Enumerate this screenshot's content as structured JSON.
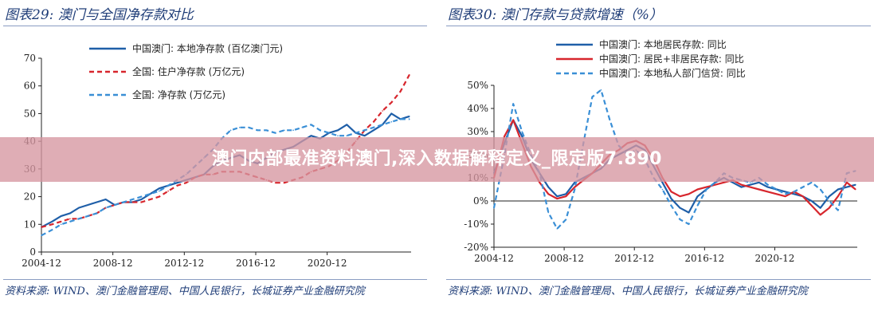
{
  "left": {
    "title": "图表29:  澳门与全国净存款对比",
    "source": "资料来源:  WIND、澳门金融管理局、中国人民银行，长城证券产业金融研究院"
  },
  "right": {
    "title": "图表30:  澳门存款与贷款增速（%）",
    "source": "资料来源:  WIND、澳门金融管理局、中国人民银行，长城证券产业金融研究院"
  },
  "banner": {
    "text": "澳门内部最准资料澳门,深入数据解释定义_限定版7.890"
  },
  "chart_data": [
    {
      "type": "line",
      "ylim": [
        0,
        70
      ],
      "yticks": [
        "0",
        "10",
        "20",
        "30",
        "40",
        "50",
        "60",
        "70"
      ],
      "xticks": [
        "2004-12",
        "2008-12",
        "2012-12",
        "2016-12",
        "2020-12"
      ],
      "xlim": [
        2004.9,
        2025.6
      ],
      "grid": false,
      "legend_position": "top",
      "series": [
        {
          "name": "中国澳门: 本地净存款 (百亿澳门元)",
          "color": "#1f5fa8",
          "style": "solid",
          "x": [
            2004.9,
            2005.5,
            2006.0,
            2006.5,
            2007.0,
            2007.5,
            2008.0,
            2008.5,
            2009.0,
            2009.5,
            2010.0,
            2010.5,
            2011.0,
            2011.5,
            2012.0,
            2012.5,
            2013.0,
            2013.5,
            2014.0,
            2014.5,
            2015.0,
            2015.5,
            2016.0,
            2016.5,
            2017.0,
            2017.5,
            2018.0,
            2018.5,
            2019.0,
            2019.5,
            2020.0,
            2020.5,
            2021.0,
            2021.5,
            2022.0,
            2022.5,
            2023.0,
            2023.5,
            2024.0,
            2024.5,
            2025.0,
            2025.5
          ],
          "values": [
            9,
            11,
            13,
            14,
            16,
            17,
            18,
            19,
            17,
            18,
            18,
            19,
            21,
            23,
            24,
            25,
            26,
            27,
            28,
            31,
            33,
            34,
            35,
            33,
            32,
            34,
            36,
            37,
            38,
            40,
            42,
            41,
            43,
            44,
            46,
            43,
            42,
            44,
            46,
            50,
            48,
            49
          ]
        },
        {
          "name": "全国: 住户净存款 (万亿元)",
          "color": "#d7262d",
          "style": "dashed",
          "x": [
            2004.9,
            2005.5,
            2006.0,
            2006.5,
            2007.0,
            2007.5,
            2008.0,
            2008.5,
            2009.0,
            2009.5,
            2010.0,
            2010.5,
            2011.0,
            2011.5,
            2012.0,
            2012.5,
            2013.0,
            2013.5,
            2014.0,
            2014.5,
            2015.0,
            2015.5,
            2016.0,
            2016.5,
            2017.0,
            2017.5,
            2018.0,
            2018.5,
            2019.0,
            2019.5,
            2020.0,
            2020.5,
            2021.0,
            2021.5,
            2022.0,
            2022.5,
            2023.0,
            2023.5,
            2024.0,
            2024.5,
            2025.0,
            2025.5
          ],
          "values": [
            9,
            10,
            11,
            12,
            12,
            13,
            14,
            16,
            17,
            18,
            18,
            18,
            19,
            20,
            22,
            24,
            25,
            27,
            28,
            28,
            29,
            29,
            29,
            28,
            27,
            26,
            25,
            25,
            26,
            27,
            29,
            30,
            31,
            33,
            36,
            40,
            44,
            47,
            51,
            54,
            58,
            64
          ]
        },
        {
          "name": "全国: 净存款 (万亿元)",
          "color": "#3a8fd6",
          "style": "dashed",
          "x": [
            2004.9,
            2005.5,
            2006.0,
            2006.5,
            2007.0,
            2007.5,
            2008.0,
            2008.5,
            2009.0,
            2009.5,
            2010.0,
            2010.5,
            2011.0,
            2011.5,
            2012.0,
            2012.5,
            2013.0,
            2013.5,
            2014.0,
            2014.5,
            2015.0,
            2015.5,
            2016.0,
            2016.5,
            2017.0,
            2017.5,
            2018.0,
            2018.5,
            2019.0,
            2019.5,
            2020.0,
            2020.5,
            2021.0,
            2021.5,
            2022.0,
            2022.5,
            2023.0,
            2023.5,
            2024.0,
            2024.5,
            2025.0,
            2025.5
          ],
          "values": [
            6,
            8,
            10,
            11,
            12,
            13,
            14,
            16,
            17,
            18,
            19,
            20,
            21,
            22,
            24,
            26,
            28,
            31,
            34,
            37,
            41,
            44,
            45,
            45,
            44,
            44,
            43,
            44,
            44,
            45,
            46,
            44,
            43,
            42,
            42,
            43,
            44,
            45,
            46,
            47,
            48,
            48
          ]
        }
      ]
    },
    {
      "type": "line",
      "ylim": [
        -20,
        50
      ],
      "yticks": [
        "50%",
        "40%",
        "30%",
        "20%",
        "10%",
        "0%",
        "-10%",
        "-20%"
      ],
      "xticks": [
        "2004-12",
        "2008-12",
        "2012-12",
        "2016-12",
        "2020-12"
      ],
      "xlim": [
        2004.9,
        2025.6
      ],
      "grid": false,
      "legend_position": "top",
      "series": [
        {
          "name": "中国澳门: 本地居民存款: 同比",
          "color": "#1f5fa8",
          "style": "solid",
          "x": [
            2004.9,
            2005.5,
            2006.0,
            2006.5,
            2007.0,
            2007.5,
            2008.0,
            2008.5,
            2009.0,
            2009.5,
            2010.0,
            2010.5,
            2011.0,
            2011.5,
            2012.0,
            2012.5,
            2013.0,
            2013.5,
            2014.0,
            2014.5,
            2015.0,
            2015.5,
            2016.0,
            2016.5,
            2017.0,
            2017.5,
            2018.0,
            2018.5,
            2019.0,
            2019.5,
            2020.0,
            2020.5,
            2021.0,
            2021.5,
            2022.0,
            2022.5,
            2023.0,
            2023.5,
            2024.0,
            2024.5,
            2025.0,
            2025.5
          ],
          "values": [
            12,
            25,
            35,
            28,
            18,
            12,
            6,
            2,
            3,
            8,
            10,
            12,
            14,
            18,
            20,
            22,
            24,
            22,
            15,
            8,
            1,
            -3,
            -5,
            2,
            5,
            8,
            10,
            8,
            6,
            7,
            8,
            6,
            5,
            4,
            3,
            2,
            0,
            -3,
            2,
            5,
            6,
            7
          ]
        },
        {
          "name": "中国澳门: 居民+非居民存款: 同比",
          "color": "#d7262d",
          "style": "solid",
          "x": [
            2004.9,
            2005.5,
            2006.0,
            2006.5,
            2007.0,
            2007.5,
            2008.0,
            2008.5,
            2009.0,
            2009.5,
            2010.0,
            2010.5,
            2011.0,
            2011.5,
            2012.0,
            2012.5,
            2013.0,
            2013.5,
            2014.0,
            2014.5,
            2015.0,
            2015.5,
            2016.0,
            2016.5,
            2017.0,
            2017.5,
            2018.0,
            2018.5,
            2019.0,
            2019.5,
            2020.0,
            2020.5,
            2021.0,
            2021.5,
            2022.0,
            2022.5,
            2023.0,
            2023.5,
            2024.0,
            2024.5,
            2025.0,
            2025.5
          ],
          "values": [
            10,
            28,
            35,
            25,
            15,
            8,
            3,
            1,
            2,
            6,
            9,
            12,
            16,
            20,
            22,
            25,
            26,
            24,
            18,
            10,
            4,
            2,
            3,
            5,
            6,
            7,
            8,
            9,
            7,
            6,
            5,
            4,
            3,
            2,
            4,
            2,
            -2,
            -6,
            -3,
            2,
            8,
            5
          ]
        },
        {
          "name": "中国澳门: 本地私人部门信贷: 同比",
          "color": "#3a8fd6",
          "style": "dashed",
          "x": [
            2004.9,
            2005.5,
            2006.0,
            2006.5,
            2007.0,
            2007.5,
            2008.0,
            2008.5,
            2009.0,
            2009.5,
            2010.0,
            2010.5,
            2011.0,
            2011.5,
            2012.0,
            2012.5,
            2013.0,
            2013.5,
            2014.0,
            2014.5,
            2015.0,
            2015.5,
            2016.0,
            2016.5,
            2017.0,
            2017.5,
            2018.0,
            2018.5,
            2019.0,
            2019.5,
            2020.0,
            2020.5,
            2021.0,
            2021.5,
            2022.0,
            2022.5,
            2023.0,
            2023.5,
            2024.0,
            2024.5,
            2025.0,
            2025.5
          ],
          "values": [
            -3,
            20,
            42,
            30,
            20,
            12,
            -5,
            -12,
            -8,
            5,
            25,
            45,
            48,
            35,
            24,
            20,
            22,
            18,
            10,
            5,
            -2,
            -8,
            -10,
            -2,
            5,
            8,
            12,
            10,
            9,
            8,
            10,
            7,
            5,
            3,
            4,
            6,
            8,
            5,
            0,
            -4,
            12,
            13
          ]
        }
      ]
    }
  ]
}
